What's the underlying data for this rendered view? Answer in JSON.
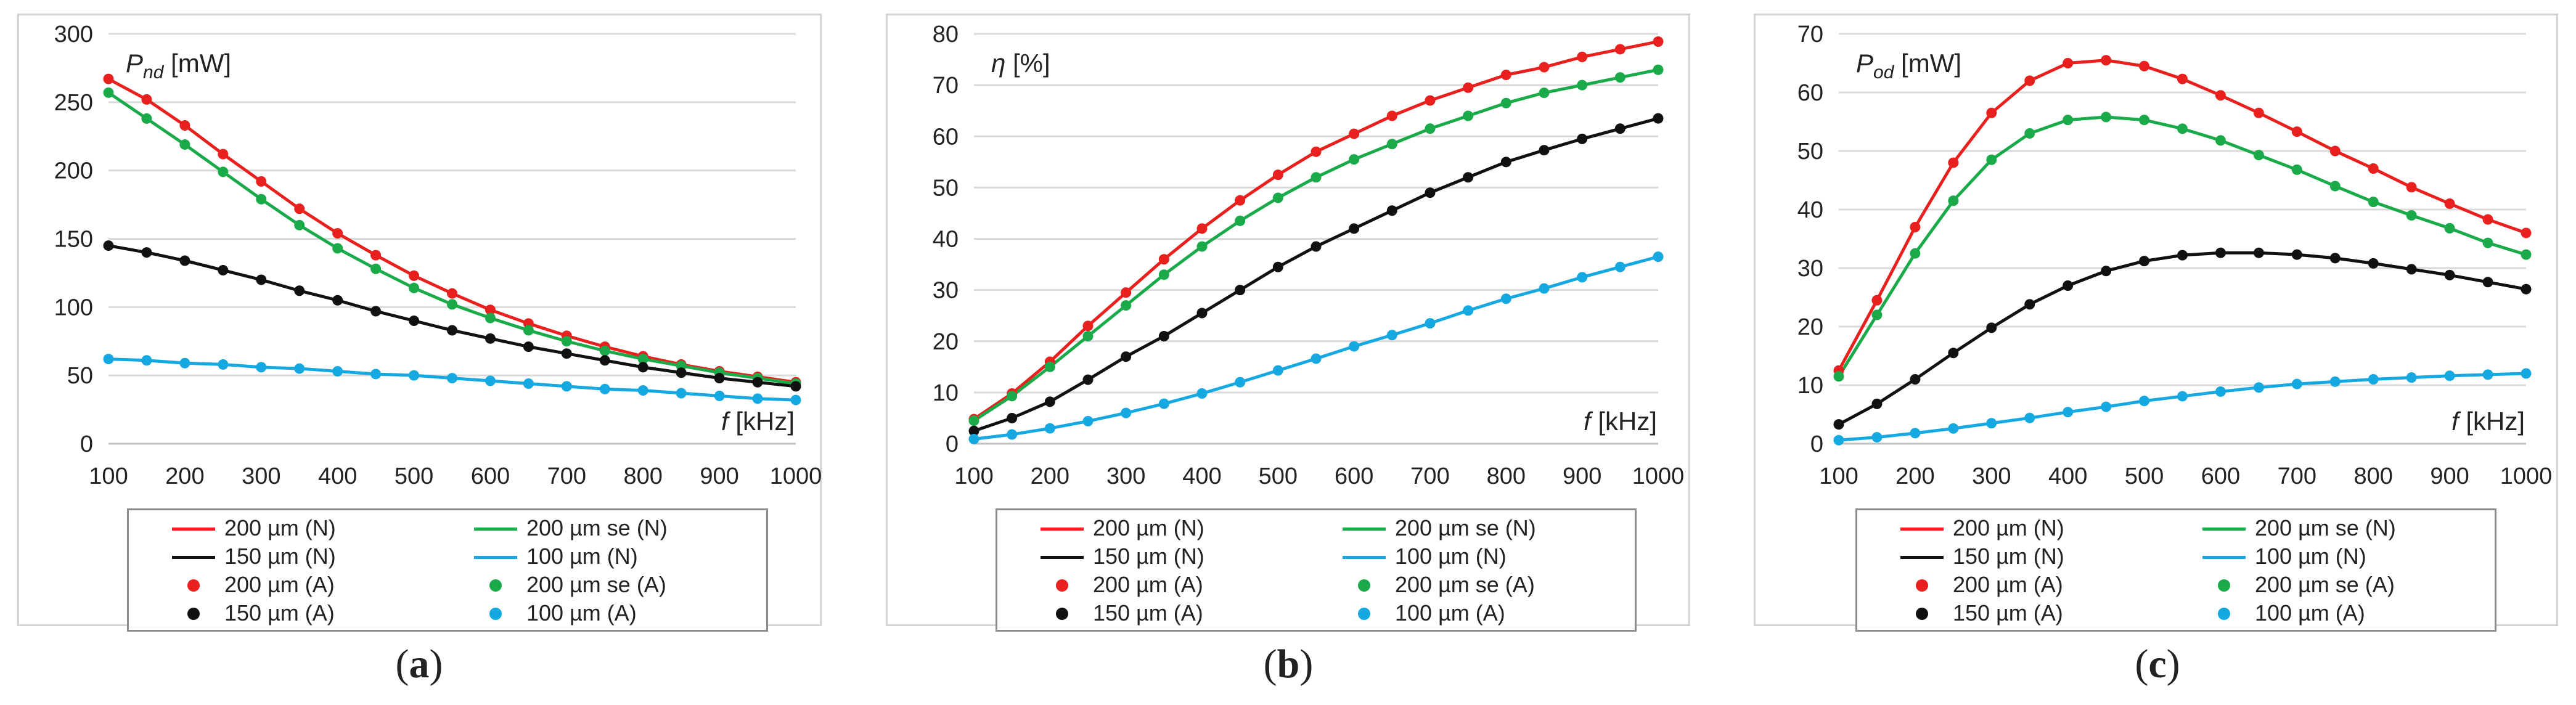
{
  "chart_data": [
    {
      "type": "line",
      "panel_label": "a",
      "y_label_symbol": "P",
      "y_label_sub": "nd",
      "y_label_unit": " [mW]",
      "x_label_symbol": "f",
      "x_label_unit": " [kHz]",
      "xlim": [
        100,
        1000
      ],
      "ylim": [
        0,
        300
      ],
      "x_ticks": [
        100,
        200,
        300,
        400,
        500,
        600,
        700,
        800,
        900,
        1000
      ],
      "y_ticks": [
        0,
        50,
        100,
        150,
        200,
        250,
        300
      ],
      "x": [
        100,
        150,
        200,
        250,
        300,
        350,
        400,
        450,
        500,
        550,
        600,
        650,
        700,
        750,
        800,
        850,
        900,
        950,
        1000
      ],
      "grid": "horizontal",
      "series": [
        {
          "name": "200 µm (N)",
          "color": "#e8201e",
          "values": [
            267,
            252,
            233,
            212,
            192,
            172,
            154,
            138,
            123,
            110,
            98,
            88,
            79,
            71,
            64,
            58,
            53,
            49,
            45
          ]
        },
        {
          "name": "200 µm se (N)",
          "color": "#1aaa4a",
          "values": [
            257,
            238,
            219,
            199,
            179,
            160,
            143,
            128,
            114,
            102,
            92,
            83,
            75,
            68,
            62,
            57,
            52,
            48,
            44
          ]
        },
        {
          "name": "150 µm (N)",
          "color": "#111111",
          "values": [
            145,
            140,
            134,
            127,
            120,
            112,
            105,
            97,
            90,
            83,
            77,
            71,
            66,
            61,
            56,
            52,
            48,
            45,
            42
          ]
        },
        {
          "name": "100 µm (N)",
          "color": "#16a8e0",
          "values": [
            62,
            61,
            59,
            58,
            56,
            55,
            53,
            51,
            50,
            48,
            46,
            44,
            42,
            40,
            39,
            37,
            35,
            33,
            32
          ]
        }
      ]
    },
    {
      "type": "line",
      "panel_label": "b",
      "y_label_symbol": "η",
      "y_label_sub": "",
      "y_label_unit": " [%]",
      "x_label_symbol": "f",
      "x_label_unit": " [kHz]",
      "xlim": [
        100,
        1000
      ],
      "ylim": [
        0,
        80
      ],
      "x_ticks": [
        100,
        200,
        300,
        400,
        500,
        600,
        700,
        800,
        900,
        1000
      ],
      "y_ticks": [
        0,
        10,
        20,
        30,
        40,
        50,
        60,
        70,
        80
      ],
      "x": [
        100,
        150,
        200,
        250,
        300,
        350,
        400,
        450,
        500,
        550,
        600,
        650,
        700,
        750,
        800,
        850,
        900,
        950,
        1000
      ],
      "grid": "horizontal",
      "series": [
        {
          "name": "200 µm (N)",
          "color": "#e8201e",
          "values": [
            4.8,
            9.8,
            16,
            23,
            29.5,
            36,
            42,
            47.5,
            52.5,
            57,
            60.5,
            64,
            67,
            69.5,
            72,
            73.5,
            75.5,
            77,
            78.5
          ]
        },
        {
          "name": "200 µm se (N)",
          "color": "#1aaa4a",
          "values": [
            4.5,
            9.3,
            15,
            21,
            27,
            33,
            38.5,
            43.5,
            48,
            52,
            55.5,
            58.5,
            61.5,
            64,
            66.5,
            68.5,
            70,
            71.5,
            73
          ]
        },
        {
          "name": "150 µm (N)",
          "color": "#111111",
          "values": [
            2.5,
            5,
            8.2,
            12.5,
            17,
            21,
            25.5,
            30,
            34.5,
            38.5,
            42,
            45.5,
            49,
            52,
            55,
            57.3,
            59.5,
            61.5,
            63.5
          ]
        },
        {
          "name": "100 µm (N)",
          "color": "#16a8e0",
          "values": [
            0.9,
            1.8,
            3,
            4.4,
            6,
            7.8,
            9.8,
            12,
            14.3,
            16.6,
            19,
            21.2,
            23.5,
            26,
            28.3,
            30.3,
            32.5,
            34.5,
            36.5
          ]
        }
      ]
    },
    {
      "type": "line",
      "panel_label": "c",
      "y_label_symbol": "P",
      "y_label_sub": "od",
      "y_label_unit": " [mW]",
      "x_label_symbol": "f",
      "x_label_unit": " [kHz]",
      "xlim": [
        100,
        1000
      ],
      "ylim": [
        0,
        70
      ],
      "x_ticks": [
        100,
        200,
        300,
        400,
        500,
        600,
        700,
        800,
        900,
        1000
      ],
      "y_ticks": [
        0,
        10,
        20,
        30,
        40,
        50,
        60,
        70
      ],
      "x": [
        100,
        150,
        200,
        250,
        300,
        350,
        400,
        450,
        500,
        550,
        600,
        650,
        700,
        750,
        800,
        850,
        900,
        950,
        1000
      ],
      "grid": "horizontal",
      "series": [
        {
          "name": "200 µm (N)",
          "color": "#e8201e",
          "values": [
            12.5,
            24.5,
            37,
            48,
            56.5,
            62,
            65,
            65.5,
            64.5,
            62.3,
            59.5,
            56.5,
            53.3,
            50,
            47,
            43.8,
            41,
            38.3,
            36
          ]
        },
        {
          "name": "200 µm se (N)",
          "color": "#1aaa4a",
          "values": [
            11.5,
            22,
            32.5,
            41.5,
            48.5,
            53,
            55.3,
            55.8,
            55.3,
            53.8,
            51.8,
            49.3,
            46.8,
            44,
            41.3,
            39,
            36.8,
            34.3,
            32.3
          ]
        },
        {
          "name": "150 µm (N)",
          "color": "#111111",
          "values": [
            3.3,
            6.8,
            11,
            15.5,
            19.8,
            23.8,
            27,
            29.5,
            31.2,
            32.2,
            32.6,
            32.6,
            32.3,
            31.7,
            30.8,
            29.8,
            28.8,
            27.6,
            26.4
          ]
        },
        {
          "name": "100 µm (N)",
          "color": "#16a8e0",
          "values": [
            0.6,
            1.1,
            1.8,
            2.6,
            3.5,
            4.4,
            5.4,
            6.3,
            7.3,
            8.1,
            8.9,
            9.6,
            10.2,
            10.6,
            11,
            11.3,
            11.6,
            11.8,
            12
          ]
        }
      ]
    }
  ],
  "legend": {
    "items": [
      {
        "label": "200 µm (N)",
        "kind": "line",
        "color": "#e8201e"
      },
      {
        "label": "200 µm se (N)",
        "kind": "line",
        "color": "#1aaa4a"
      },
      {
        "label": "150 µm (N)",
        "kind": "line",
        "color": "#111111"
      },
      {
        "label": "100 µm (N)",
        "kind": "line",
        "color": "#16a8e0"
      },
      {
        "label": "200 µm (A)",
        "kind": "marker",
        "color": "#e8201e"
      },
      {
        "label": "200 µm se (A)",
        "kind": "marker",
        "color": "#1aaa4a"
      },
      {
        "label": "150 µm (A)",
        "kind": "marker",
        "color": "#111111"
      },
      {
        "label": "100 µm (A)",
        "kind": "marker",
        "color": "#16a8e0"
      }
    ]
  },
  "captions": [
    "a",
    "b",
    "c"
  ],
  "colors": {
    "grid": "#d9d9d9",
    "axis": "#bfbfbf",
    "frame": "#d4d4d4"
  }
}
